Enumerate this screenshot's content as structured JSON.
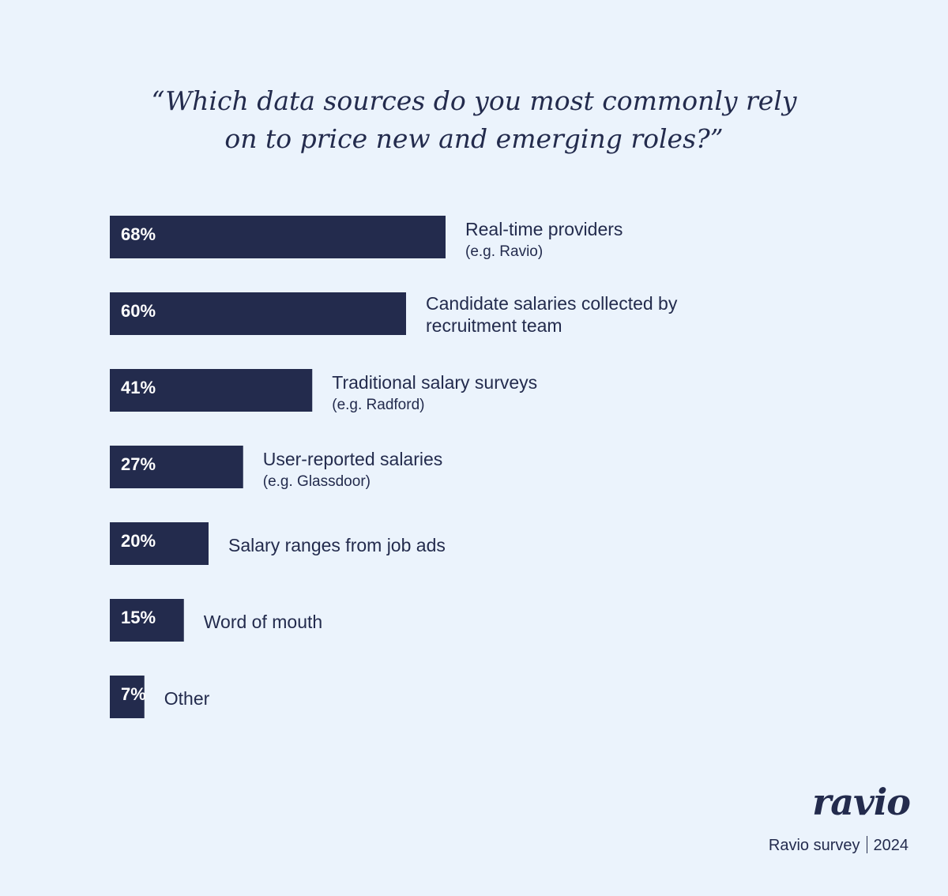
{
  "title": {
    "line1": "“Which data sources do you most commonly rely",
    "line2": "on to price new and emerging roles?”"
  },
  "colors": {
    "background": "#ebf3fc",
    "bar": "#232b4d",
    "text": "#232b4d",
    "value_text": "#ffffff"
  },
  "chart_data": {
    "type": "bar",
    "orientation": "horizontal",
    "title": "“Which data sources do you most commonly rely on to price new and emerging roles?”",
    "categories": [
      "Real-time providers",
      "Candidate salaries collected by recruitment team",
      "Traditional salary surveys",
      "User-reported salaries",
      "Salary ranges from job ads",
      "Word of mouth",
      "Other"
    ],
    "values": [
      68,
      60,
      41,
      27,
      20,
      15,
      7
    ],
    "value_labels": [
      "68%",
      "60%",
      "41%",
      "27%",
      "20%",
      "15%",
      "7%"
    ],
    "label_lines": [
      [
        "Real-time providers"
      ],
      [
        "Candidate salaries collected by",
        "recruitment team"
      ],
      [
        "Traditional salary surveys"
      ],
      [
        "User-reported salaries"
      ],
      [
        "Salary ranges from job ads"
      ],
      [
        "Word of mouth"
      ],
      [
        "Other"
      ]
    ],
    "sublabels": [
      "(e.g. Ravio)",
      "",
      "(e.g. Radford)",
      "(e.g. Glassdoor)",
      "",
      "",
      ""
    ],
    "unit": "%",
    "grid": false,
    "legend": "none"
  },
  "brand": {
    "logo_text": "ravio"
  },
  "footer": {
    "source": "Ravio survey",
    "year": "2024"
  }
}
